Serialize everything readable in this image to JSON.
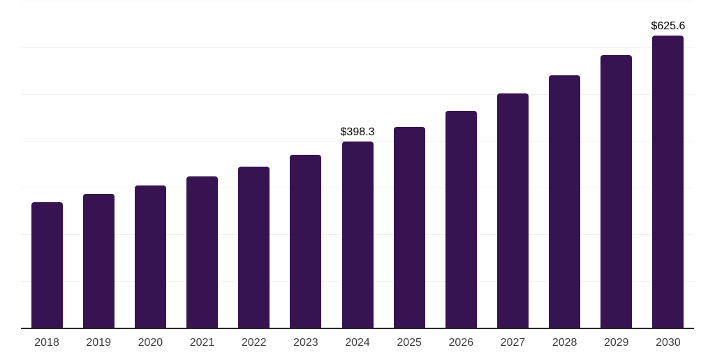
{
  "chart_data": {
    "type": "bar",
    "title": "",
    "xlabel": "",
    "ylabel": "",
    "categories": [
      "2018",
      "2019",
      "2020",
      "2021",
      "2022",
      "2023",
      "2024",
      "2025",
      "2026",
      "2027",
      "2028",
      "2029",
      "2030"
    ],
    "values": [
      269,
      287,
      304,
      324,
      345,
      370,
      398.3,
      430,
      464,
      502,
      541,
      583,
      625.6
    ],
    "data_labels": [
      "",
      "",
      "",
      "",
      "",
      "",
      "$398.3",
      "",
      "",
      "",
      "",
      "",
      "$625.6"
    ],
    "ylim": [
      0,
      700
    ],
    "gridline_step": 100,
    "grid": "horizontal",
    "legend_position": "none",
    "bar_color": "#371352"
  },
  "colors": {
    "background": "#ffffff",
    "bar": "#371352",
    "gridline": "#f0f0f0",
    "axis_line": "#262626",
    "tick_label": "#3d3d3d",
    "data_label": "#000000"
  },
  "layout_labels": {
    "chart_name": "annual-value-bar-chart"
  }
}
